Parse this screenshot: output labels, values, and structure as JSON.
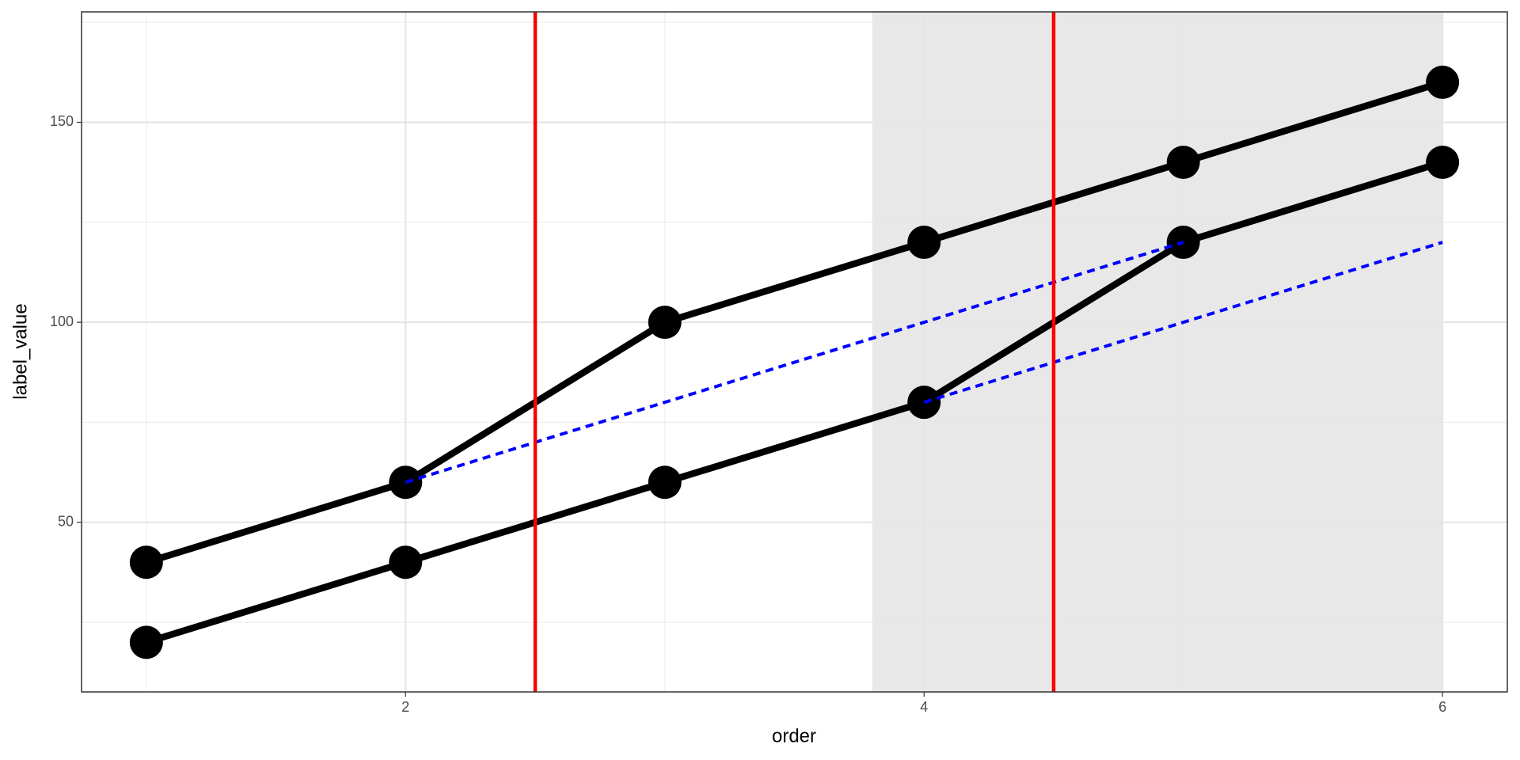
{
  "chart_data": {
    "type": "line",
    "x_label": "order",
    "y_label": "label_value",
    "x": [
      1,
      2,
      3,
      4,
      5,
      6
    ],
    "series": [
      {
        "color": "#000000",
        "values": [
          40,
          60,
          100,
          120,
          140,
          160
        ]
      },
      {
        "color": "#000000",
        "values": [
          20,
          40,
          60,
          80,
          120,
          140
        ]
      }
    ],
    "segments": {
      "color": "#0000ff",
      "lines": [
        {
          "x": [
            2,
            5
          ],
          "y": [
            60,
            120
          ]
        },
        {
          "x": [
            4,
            6
          ],
          "y": [
            80,
            120
          ]
        }
      ]
    },
    "vlines": {
      "color": "#ff0000",
      "x": [
        2.5,
        4.5
      ]
    },
    "shaded_region": {
      "color": "#e6e6e6",
      "x": [
        3.8,
        6
      ]
    },
    "xlim": [
      0.75,
      6.25
    ],
    "ylim": [
      7.6,
      177.6
    ],
    "xticks": [
      2,
      4,
      6
    ],
    "yticks": [
      50,
      100,
      150
    ],
    "xminor": [
      1,
      3,
      5
    ],
    "yminor": [
      25,
      75,
      125,
      175
    ],
    "grid": true
  }
}
